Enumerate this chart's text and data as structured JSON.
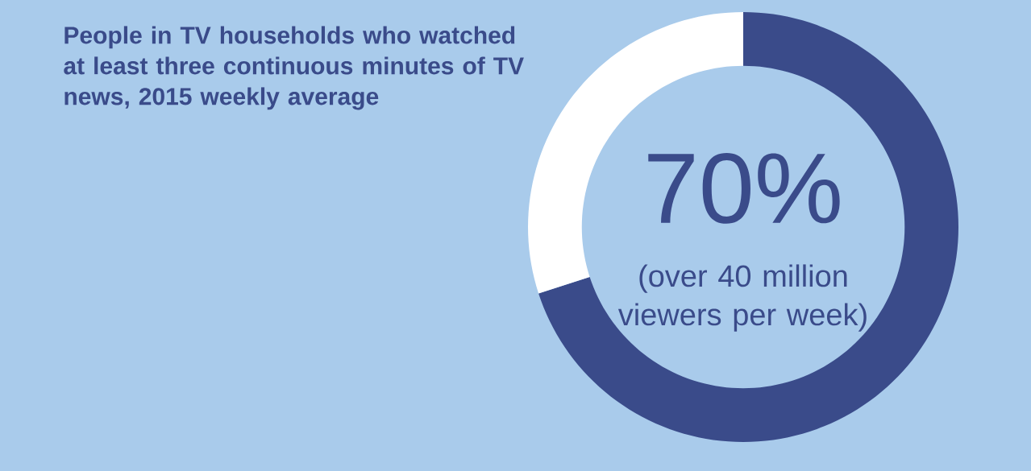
{
  "chart_data": {
    "type": "donut",
    "title": "People in TV households who watched at least three continuous minutes of TV news, 2015 weekly average",
    "categories": [
      null,
      null
    ],
    "values": [
      70,
      30
    ],
    "colors": [
      "#3a4b8a",
      "#ffffff"
    ],
    "annotations": [
      "70%",
      "(over 40 million viewers per week)"
    ]
  }
}
